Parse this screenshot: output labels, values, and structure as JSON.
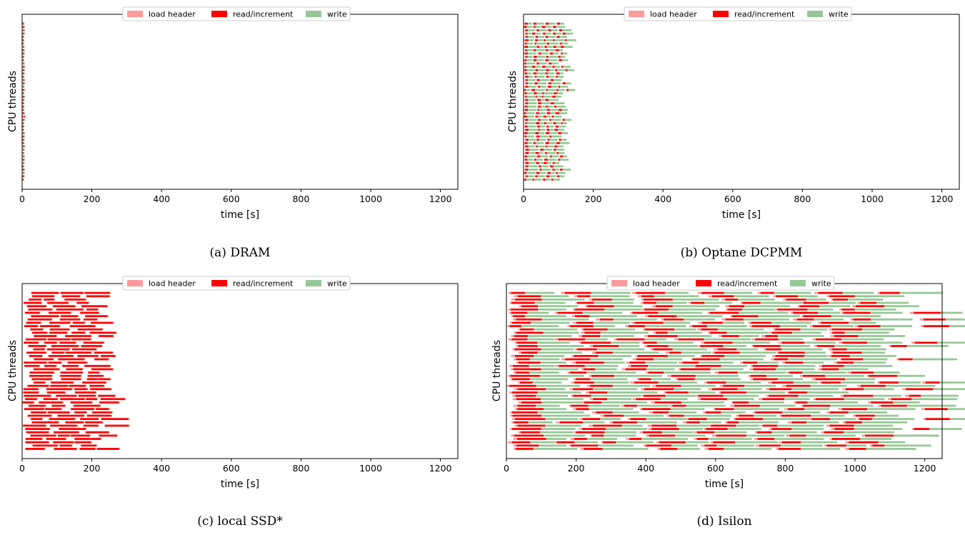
{
  "legend": [
    "load header",
    "read/increment",
    "write"
  ],
  "colors": {
    "load header": "#ff9a9a",
    "read/increment": "#ff0000",
    "write": "#96c896"
  },
  "chart_data": [
    {
      "type": "gantt",
      "caption": "(a) DRAM",
      "xlabel": "time [s]",
      "ylabel": "CPU threads",
      "xlim": [
        0,
        1250
      ],
      "xticks": [
        0,
        200,
        400,
        600,
        800,
        1000,
        1200
      ],
      "legend_position": "top-center",
      "threads": 48,
      "approx_task_durations_s": {
        "load header": 1,
        "read/increment": 3,
        "write": 2
      },
      "approx_end_time_s": 6
    },
    {
      "type": "gantt",
      "caption": "(b) Optane DCPMM",
      "xlabel": "time [s]",
      "ylabel": "CPU threads",
      "xlim": [
        0,
        1250
      ],
      "xticks": [
        0,
        200,
        400,
        600,
        800,
        1000,
        1200
      ],
      "legend_position": "top-center",
      "threads": 48,
      "approx_task_durations_s": {
        "load header": 2,
        "read/increment": 7,
        "write": 20
      },
      "approx_end_time_s": 125
    },
    {
      "type": "gantt",
      "caption": "(c) local SSD*",
      "xlabel": "time [s]",
      "ylabel": "CPU threads",
      "xlim": [
        0,
        1250
      ],
      "xticks": [
        0,
        200,
        400,
        600,
        800,
        1000,
        1200
      ],
      "legend_position": "top-center",
      "threads": 48,
      "approx_task_durations_s": {
        "load header": 1,
        "read/increment": 55,
        "write": 1
      },
      "approx_end_time_s": 245
    },
    {
      "type": "gantt",
      "caption": "(d) Isilon",
      "xlabel": "time [s]",
      "ylabel": "CPU threads",
      "xlim": [
        0,
        1250
      ],
      "xticks": [
        0,
        200,
        400,
        600,
        800,
        1000,
        1200
      ],
      "legend_position": "top-center",
      "threads": 48,
      "approx_task_durations_s": {
        "load header": 8,
        "read/increment": 60,
        "write": 100
      },
      "approx_end_time_s": 1225
    }
  ]
}
